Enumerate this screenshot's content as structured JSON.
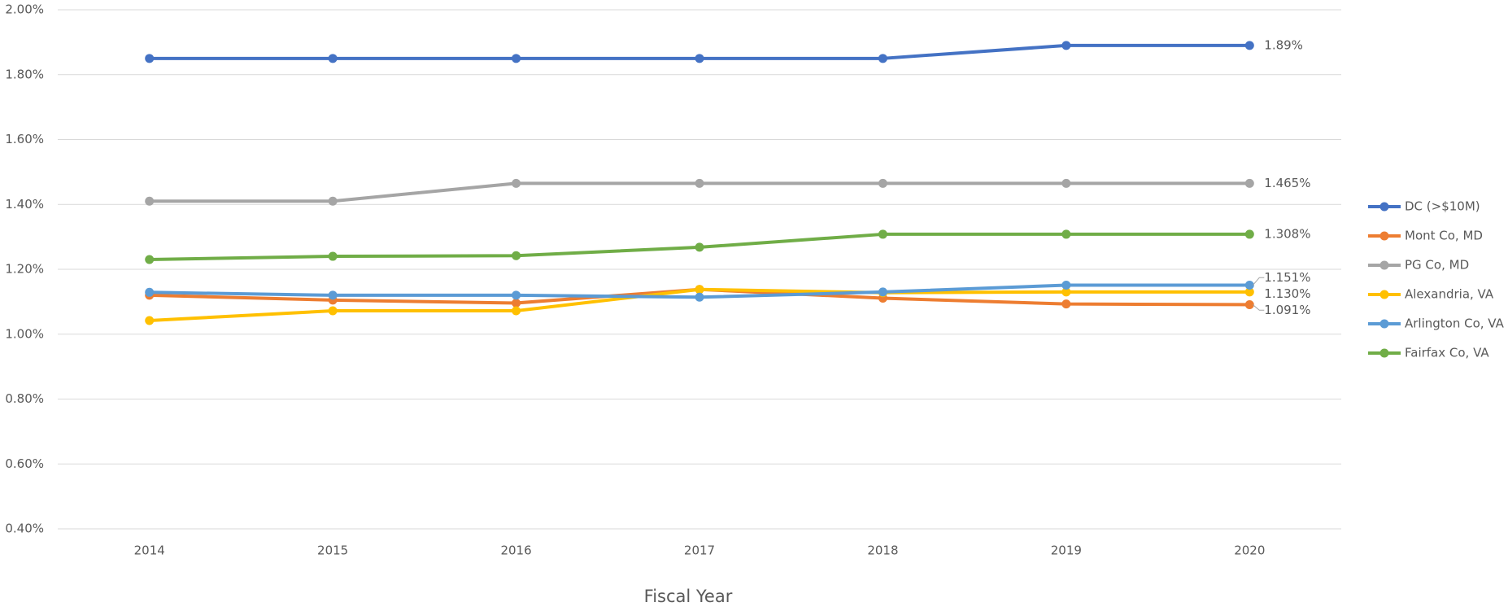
{
  "chart_data": {
    "type": "line",
    "x_label": "Fiscal Year",
    "categories": [
      "2014",
      "2015",
      "2016",
      "2017",
      "2018",
      "2019",
      "2020"
    ],
    "ylim": [
      0.4,
      2.0
    ],
    "yticks": [
      {
        "value": 0.4,
        "label": "0.40%"
      },
      {
        "value": 0.6,
        "label": "0.60%"
      },
      {
        "value": 0.8,
        "label": "0.80%"
      },
      {
        "value": 1.0,
        "label": "1.00%"
      },
      {
        "value": 1.2,
        "label": "1.20%"
      },
      {
        "value": 1.4,
        "label": "1.40%"
      },
      {
        "value": 1.6,
        "label": "1.60%"
      },
      {
        "value": 1.8,
        "label": "1.80%"
      },
      {
        "value": 2.0,
        "label": "2.00%"
      }
    ],
    "grid": true,
    "legend": "right",
    "series": [
      {
        "name": "DC (>$10M)",
        "color": "#4472c4",
        "values": [
          1.85,
          1.85,
          1.85,
          1.85,
          1.85,
          1.89,
          1.89
        ],
        "value_labels": [
          null,
          null,
          null,
          null,
          null,
          null,
          "1.89%"
        ]
      },
      {
        "name": "Mont Co, MD",
        "color": "#ed7d31",
        "values": [
          1.12,
          1.105,
          1.096,
          1.138,
          1.111,
          1.093,
          1.091
        ],
        "value_labels": [
          null,
          null,
          null,
          null,
          null,
          null,
          "1.091%"
        ]
      },
      {
        "name": "PG Co, MD",
        "color": "#a5a5a5",
        "values": [
          1.41,
          1.41,
          1.465,
          1.465,
          1.465,
          1.465,
          1.465
        ],
        "value_labels": [
          null,
          null,
          null,
          null,
          null,
          null,
          "1.465%"
        ]
      },
      {
        "name": "Alexandria, VA",
        "color": "#ffc000",
        "values": [
          1.042,
          1.072,
          1.072,
          1.138,
          1.128,
          1.13,
          1.13
        ],
        "value_labels": [
          null,
          null,
          null,
          null,
          null,
          null,
          "1.130%"
        ]
      },
      {
        "name": "Arlington Co, VA",
        "color": "#5b9bd5",
        "values": [
          1.129,
          1.12,
          1.12,
          1.114,
          1.13,
          1.151,
          1.151
        ],
        "value_labels": [
          null,
          null,
          null,
          null,
          null,
          null,
          "1.151%"
        ]
      },
      {
        "name": "Fairfax Co, VA",
        "color": "#70ad47",
        "values": [
          1.23,
          1.24,
          1.242,
          1.268,
          1.308,
          1.308,
          1.308
        ],
        "value_labels": [
          null,
          null,
          null,
          null,
          null,
          null,
          "1.308%"
        ]
      }
    ]
  }
}
